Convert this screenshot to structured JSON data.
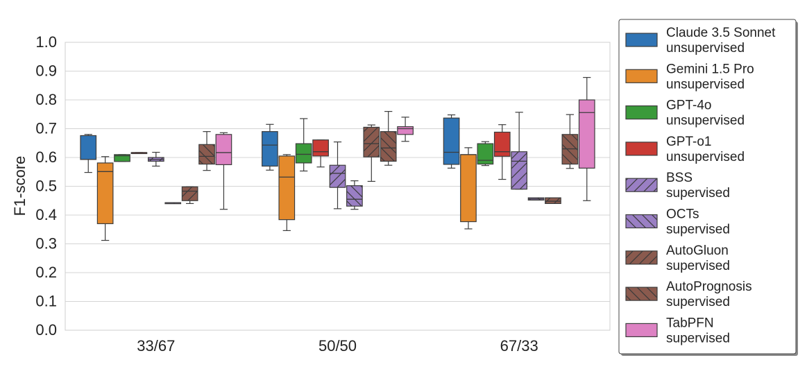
{
  "chart_data": {
    "type": "boxplot",
    "title": "",
    "xlabel": "",
    "ylabel": "F1-score",
    "ylim": [
      0.0,
      1.0
    ],
    "yticks": [
      "0.0",
      "0.1",
      "0.2",
      "0.3",
      "0.4",
      "0.5",
      "0.6",
      "0.7",
      "0.8",
      "0.9",
      "1.0"
    ],
    "categories": [
      "33/67",
      "50/50",
      "67/33"
    ],
    "grid": "horizontal",
    "legend_position": "right",
    "series": [
      {
        "name": "Claude 3.5 Sonnet",
        "mode": "unsupervised",
        "color": "#2f74b5",
        "hatch": "none",
        "boxes": [
          {
            "whislo": 0.548,
            "q1": 0.593,
            "med": 0.593,
            "q3": 0.676,
            "whishi": 0.68
          },
          {
            "whislo": 0.556,
            "q1": 0.57,
            "med": 0.643,
            "q3": 0.69,
            "whishi": 0.715
          },
          {
            "whislo": 0.563,
            "q1": 0.576,
            "med": 0.618,
            "q3": 0.737,
            "whishi": 0.748
          }
        ]
      },
      {
        "name": "Gemini 1.5 Pro",
        "mode": "unsupervised",
        "color": "#e48a2c",
        "hatch": "none",
        "boxes": [
          {
            "whislo": 0.312,
            "q1": 0.37,
            "med": 0.551,
            "q3": 0.581,
            "whishi": 0.603
          },
          {
            "whislo": 0.346,
            "q1": 0.384,
            "med": 0.532,
            "q3": 0.605,
            "whishi": 0.61
          },
          {
            "whislo": 0.352,
            "q1": 0.377,
            "med": 0.61,
            "q3": 0.61,
            "whishi": 0.634
          }
        ]
      },
      {
        "name": "GPT-4o",
        "mode": "unsupervised",
        "color": "#3a9a3a",
        "hatch": "none",
        "boxes": [
          {
            "whislo": 0.586,
            "q1": 0.586,
            "med": 0.606,
            "q3": 0.61,
            "whishi": 0.61
          },
          {
            "whislo": 0.553,
            "q1": 0.581,
            "med": 0.611,
            "q3": 0.648,
            "whishi": 0.735
          },
          {
            "whislo": 0.572,
            "q1": 0.577,
            "med": 0.59,
            "q3": 0.648,
            "whishi": 0.655
          }
        ]
      },
      {
        "name": "GPT-o1",
        "mode": "unsupervised",
        "color": "#c93a34",
        "hatch": "none",
        "boxes": [
          {
            "whislo": 0.617,
            "q1": 0.617,
            "med": 0.617,
            "q3": 0.617,
            "whishi": 0.617
          },
          {
            "whislo": 0.567,
            "q1": 0.605,
            "med": 0.62,
            "q3": 0.661,
            "whishi": 0.661
          },
          {
            "whislo": 0.524,
            "q1": 0.604,
            "med": 0.62,
            "q3": 0.688,
            "whishi": 0.714
          }
        ]
      },
      {
        "name": "BSS",
        "mode": "supervised",
        "color": "#9a7fc4",
        "hatch": "forward",
        "boxes": [
          {
            "whislo": 0.57,
            "q1": 0.587,
            "med": 0.593,
            "q3": 0.6,
            "whishi": 0.618
          },
          {
            "whislo": 0.422,
            "q1": 0.496,
            "med": 0.545,
            "q3": 0.573,
            "whishi": 0.654
          },
          {
            "whislo": 0.49,
            "q1": 0.49,
            "med": 0.587,
            "q3": 0.62,
            "whishi": 0.757
          }
        ]
      },
      {
        "name": "OCTs",
        "mode": "supervised",
        "color": "#9a7fc4",
        "hatch": "back",
        "boxes": [
          {
            "whislo": 0.44,
            "q1": 0.44,
            "med": 0.443,
            "q3": 0.443,
            "whishi": 0.443
          },
          {
            "whislo": 0.42,
            "q1": 0.431,
            "med": 0.455,
            "q3": 0.502,
            "whishi": 0.519
          },
          {
            "whislo": 0.452,
            "q1": 0.452,
            "med": 0.456,
            "q3": 0.46,
            "whishi": 0.46
          }
        ]
      },
      {
        "name": "AutoGluon",
        "mode": "supervised",
        "color": "#8a5a4e",
        "hatch": "forward",
        "boxes": [
          {
            "whislo": 0.44,
            "q1": 0.45,
            "med": 0.483,
            "q3": 0.498,
            "whishi": 0.498
          },
          {
            "whislo": 0.517,
            "q1": 0.602,
            "med": 0.648,
            "q3": 0.705,
            "whishi": 0.713
          },
          {
            "whislo": 0.44,
            "q1": 0.44,
            "med": 0.448,
            "q3": 0.46,
            "whishi": 0.46
          }
        ]
      },
      {
        "name": "AutoPrognosis",
        "mode": "supervised",
        "color": "#8a5a4e",
        "hatch": "back",
        "boxes": [
          {
            "whislo": 0.555,
            "q1": 0.577,
            "med": 0.604,
            "q3": 0.645,
            "whishi": 0.69
          },
          {
            "whislo": 0.573,
            "q1": 0.587,
            "med": 0.633,
            "q3": 0.69,
            "whishi": 0.76
          },
          {
            "whislo": 0.562,
            "q1": 0.577,
            "med": 0.63,
            "q3": 0.68,
            "whishi": 0.749
          }
        ]
      },
      {
        "name": "TabPFN",
        "mode": "supervised",
        "color": "#dd82c3",
        "hatch": "none",
        "boxes": [
          {
            "whislo": 0.42,
            "q1": 0.575,
            "med": 0.617,
            "q3": 0.68,
            "whishi": 0.686
          },
          {
            "whislo": 0.656,
            "q1": 0.68,
            "med": 0.7,
            "q3": 0.707,
            "whishi": 0.74
          },
          {
            "whislo": 0.45,
            "q1": 0.563,
            "med": 0.756,
            "q3": 0.8,
            "whishi": 0.878
          }
        ]
      }
    ]
  }
}
